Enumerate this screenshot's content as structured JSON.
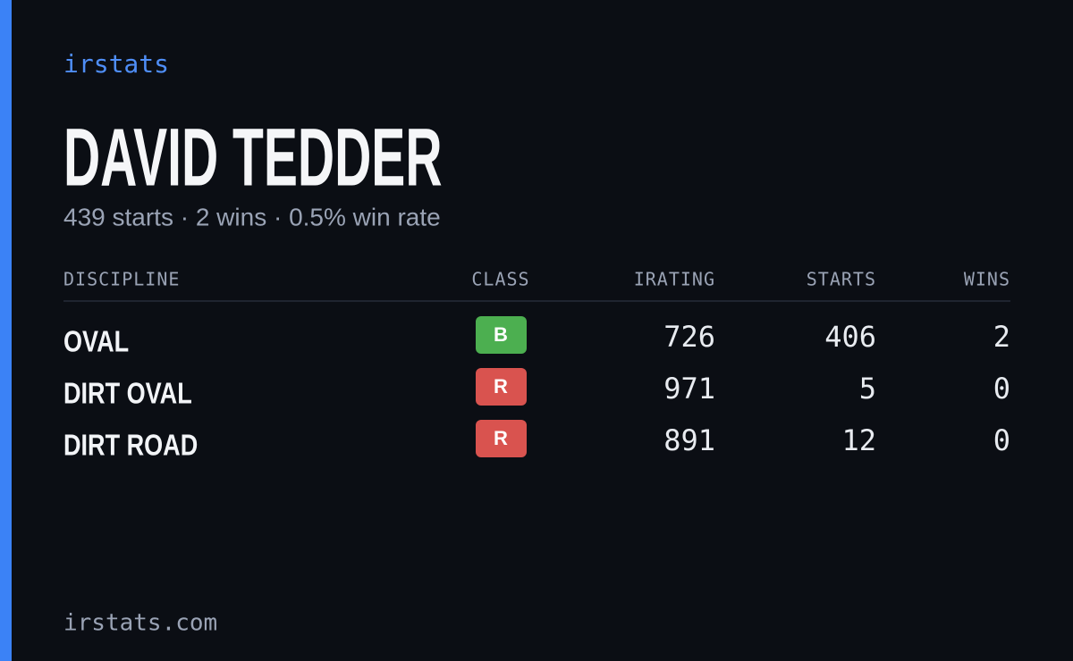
{
  "brand": "irstats",
  "name": "DAVID TEDDER",
  "summary": "439 starts · 2 wins · 0.5% win rate",
  "table": {
    "headers": [
      "DISCIPLINE",
      "CLASS",
      "IRATING",
      "STARTS",
      "WINS"
    ],
    "rows": [
      [
        "OVAL",
        "B",
        726,
        406,
        2
      ],
      [
        "DIRT OVAL",
        "R",
        971,
        5,
        0
      ],
      [
        "DIRT ROAD",
        "R",
        891,
        12,
        0
      ]
    ]
  },
  "footer": "irstats.com"
}
